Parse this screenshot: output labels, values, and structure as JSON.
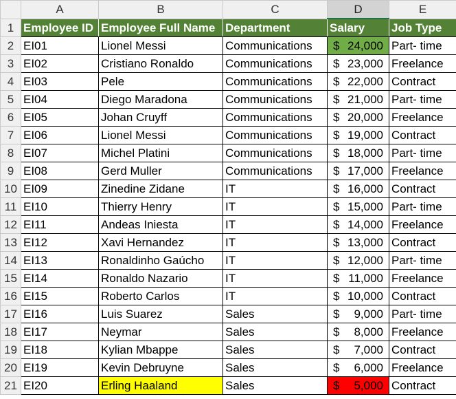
{
  "columns": [
    "A",
    "B",
    "C",
    "D",
    "E"
  ],
  "selected_column": "D",
  "colors": {
    "header_fill": "#538135",
    "max_salary_fill": "#70ad47",
    "name_highlight_fill": "#ffff00",
    "min_salary_fill": "#ff0000"
  },
  "header_row": {
    "row": "1",
    "cells": [
      "Employee ID",
      "Employee Full Name",
      "Department",
      "Salary",
      "Job Type"
    ]
  },
  "rows": [
    {
      "row": "2",
      "id": "EI01",
      "name": "Lionel Messi",
      "dept": "Communications",
      "cur": "$",
      "amt": "24,000",
      "job": "Part- time"
    },
    {
      "row": "3",
      "id": "EI02",
      "name": "Cristiano Ronaldo",
      "dept": "Communications",
      "cur": "$",
      "amt": "23,000",
      "job": "Freelance"
    },
    {
      "row": "4",
      "id": "EI03",
      "name": "Pele",
      "dept": "Communications",
      "cur": "$",
      "amt": "22,000",
      "job": "Contract"
    },
    {
      "row": "5",
      "id": "EI04",
      "name": "Diego Maradona",
      "dept": "Communications",
      "cur": "$",
      "amt": "21,000",
      "job": "Part- time"
    },
    {
      "row": "6",
      "id": "EI05",
      "name": "Johan Cruyff",
      "dept": "Communications",
      "cur": "$",
      "amt": "20,000",
      "job": "Freelance"
    },
    {
      "row": "7",
      "id": "EI06",
      "name": "Lionel Messi",
      "dept": "Communications",
      "cur": "$",
      "amt": "19,000",
      "job": "Contract"
    },
    {
      "row": "8",
      "id": "EI07",
      "name": "Michel Platini",
      "dept": "Communications",
      "cur": "$",
      "amt": "18,000",
      "job": "Part- time"
    },
    {
      "row": "9",
      "id": "EI08",
      "name": "Gerd Muller",
      "dept": "Communications",
      "cur": "$",
      "amt": "17,000",
      "job": "Freelance"
    },
    {
      "row": "10",
      "id": "EI09",
      "name": "Zinedine Zidane",
      "dept": "IT",
      "cur": "$",
      "amt": "16,000",
      "job": "Contract"
    },
    {
      "row": "11",
      "id": "EI10",
      "name": "Thierry Henry",
      "dept": "IT",
      "cur": "$",
      "amt": "15,000",
      "job": "Part- time"
    },
    {
      "row": "12",
      "id": "EI11",
      "name": "Andeas Iniesta",
      "dept": "IT",
      "cur": "$",
      "amt": "14,000",
      "job": "Freelance"
    },
    {
      "row": "13",
      "id": "EI12",
      "name": "Xavi Hernandez",
      "dept": "IT",
      "cur": "$",
      "amt": "13,000",
      "job": "Contract"
    },
    {
      "row": "14",
      "id": "EI13",
      "name": "Ronaldinho Gaúcho",
      "dept": "IT",
      "cur": "$",
      "amt": "12,000",
      "job": "Part- time"
    },
    {
      "row": "15",
      "id": "EI14",
      "name": "Ronaldo Nazario",
      "dept": "IT",
      "cur": "$",
      "amt": "11,000",
      "job": "Freelance"
    },
    {
      "row": "16",
      "id": "EI15",
      "name": "Roberto Carlos",
      "dept": "IT",
      "cur": "$",
      "amt": "10,000",
      "job": "Contract"
    },
    {
      "row": "17",
      "id": "EI16",
      "name": "Luis Suarez",
      "dept": "Sales",
      "cur": "$",
      "amt": "9,000",
      "job": "Part- time"
    },
    {
      "row": "18",
      "id": "EI17",
      "name": "Neymar",
      "dept": "Sales",
      "cur": "$",
      "amt": "8,000",
      "job": "Freelance"
    },
    {
      "row": "19",
      "id": "EI18",
      "name": "Kylian Mbappe",
      "dept": "Sales",
      "cur": "$",
      "amt": "7,000",
      "job": "Contract"
    },
    {
      "row": "20",
      "id": "EI19",
      "name": "Kevin Debruyne",
      "dept": "Sales",
      "cur": "$",
      "amt": "6,000",
      "job": "Freelance"
    },
    {
      "row": "21",
      "id": "EI20",
      "name": "Erling Haaland",
      "dept": "Sales",
      "cur": "$",
      "amt": "5,000",
      "job": "Contract"
    }
  ]
}
